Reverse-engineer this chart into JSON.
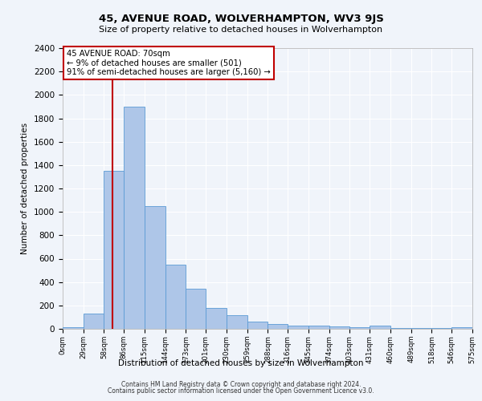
{
  "title": "45, AVENUE ROAD, WOLVERHAMPTON, WV3 9JS",
  "subtitle": "Size of property relative to detached houses in Wolverhampton",
  "xlabel": "Distribution of detached houses by size in Wolverhampton",
  "ylabel": "Number of detached properties",
  "footer_line1": "Contains HM Land Registry data © Crown copyright and database right 2024.",
  "footer_line2": "Contains public sector information licensed under the Open Government Licence v3.0.",
  "annotation_line1": "45 AVENUE ROAD: 70sqm",
  "annotation_line2": "← 9% of detached houses are smaller (501)",
  "annotation_line3": "91% of semi-detached houses are larger (5,160) →",
  "property_size_sqm": 70,
  "bin_edges": [
    0,
    29,
    58,
    86,
    115,
    144,
    173,
    201,
    230,
    259,
    288,
    316,
    345,
    374,
    403,
    431,
    460,
    489,
    518,
    546,
    575
  ],
  "bar_values": [
    15,
    130,
    1350,
    1900,
    1050,
    550,
    340,
    175,
    115,
    65,
    40,
    30,
    25,
    20,
    15,
    25,
    5,
    5,
    5,
    15
  ],
  "bar_color": "#aec6e8",
  "bar_edge_color": "#5b9bd5",
  "vline_x": 70,
  "vline_color": "#c00000",
  "annotation_box_color": "#c00000",
  "background_color": "#f0f4fa",
  "grid_color": "#ffffff",
  "ylim": [
    0,
    2400
  ],
  "yticks": [
    0,
    200,
    400,
    600,
    800,
    1000,
    1200,
    1400,
    1600,
    1800,
    2000,
    2200,
    2400
  ]
}
